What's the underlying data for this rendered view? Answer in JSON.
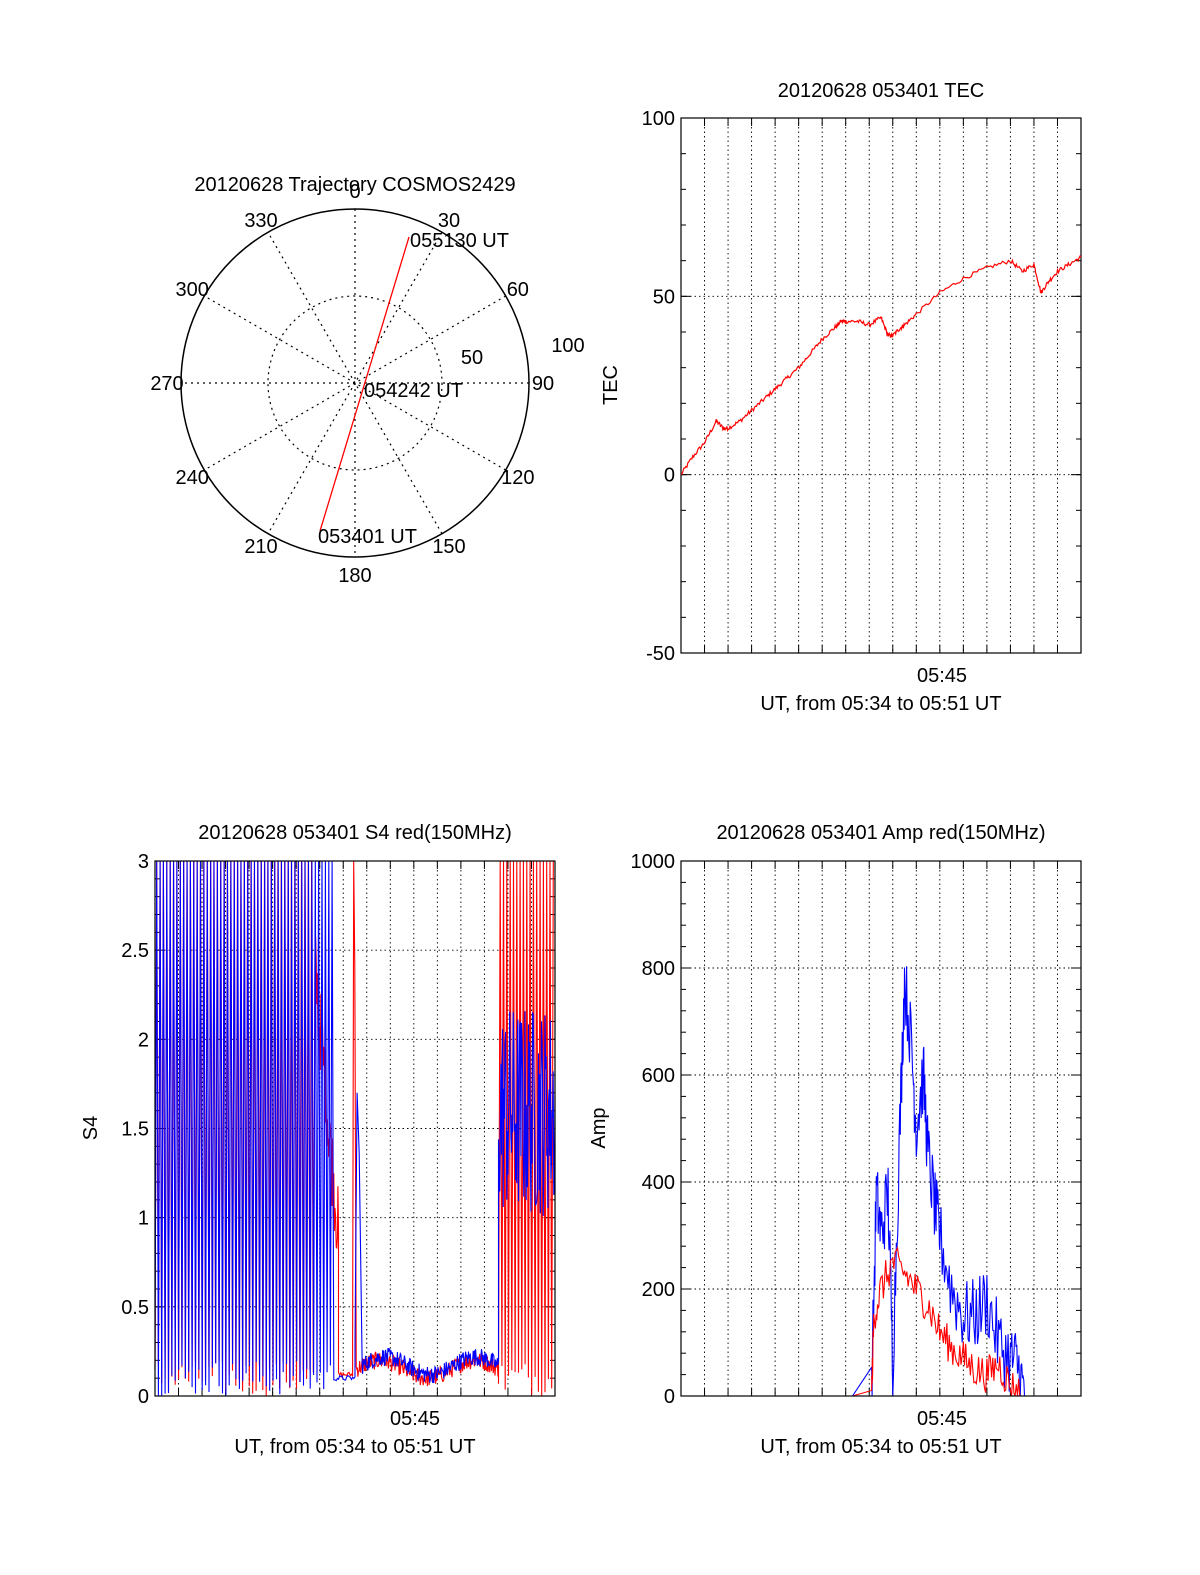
{
  "colors": {
    "red": "#ff0000",
    "blue": "#0000ff",
    "axis": "#000000",
    "grid": "#000000"
  },
  "chart_data": [
    {
      "type": "polar",
      "title": "20120628 Trajectory COSMOS2429",
      "angle_labels": [
        "0",
        "30",
        "60",
        "90",
        "120",
        "150",
        "180",
        "210",
        "240",
        "270",
        "300",
        "330"
      ],
      "radius_labels": [
        "50",
        "100"
      ],
      "grid": true,
      "series": [
        {
          "color": "red",
          "points": [
            {
              "azimuth": 200,
              "elevation_label": "053401 UT"
            },
            {
              "azimuth": 30,
              "center": true,
              "elevation_label": "054242 UT"
            },
            {
              "azimuth": 20,
              "elevation_label": "055130 UT"
            }
          ]
        }
      ],
      "annotations": [
        "053401 UT",
        "054242 UT",
        "055130 UT"
      ]
    },
    {
      "type": "line",
      "title": "20120628 053401 TEC",
      "xlabel": "UT, from 05:34 to 05:51 UT",
      "ylabel": "TEC",
      "x_tick_labels": [
        "05:45"
      ],
      "y_ticks": [
        "100",
        "50",
        "0",
        "-50"
      ],
      "ylim": [
        -50,
        100
      ],
      "xlim_minutes": [
        0,
        17
      ],
      "grid": true,
      "series": [
        {
          "color": "red",
          "x_minutes": [
            0,
            0.5,
            1,
            1.5,
            1.8,
            2.0,
            2.5,
            3.0,
            3.5,
            4.0,
            4.5,
            5.0,
            5.5,
            6.0,
            6.5,
            6.8,
            7.0,
            7.5,
            8.0,
            8.5,
            8.8,
            9.0,
            9.3,
            9.5,
            10.0,
            11.0,
            12.0,
            13.0,
            14.0,
            14.5,
            15.0,
            15.3,
            15.6,
            16.0,
            16.5,
            17.0
          ],
          "y": [
            0,
            5,
            9,
            15,
            13,
            13,
            15,
            18,
            21,
            24,
            27,
            30,
            34,
            38,
            41,
            43,
            43,
            43,
            42,
            44,
            39,
            39,
            41,
            42,
            45,
            51,
            55,
            58,
            60,
            57,
            59,
            51,
            54,
            57,
            59,
            61
          ]
        }
      ]
    },
    {
      "type": "line",
      "title": "20120628 053401 S4 red(150MHz)",
      "xlabel": "UT, from 05:34 to 05:51 UT",
      "ylabel": "S4",
      "x_tick_labels": [
        "05:45"
      ],
      "y_ticks": [
        "3",
        "2.5",
        "2",
        "1.5",
        "1",
        "0.5",
        "0"
      ],
      "ylim": [
        0,
        3
      ],
      "xlim_minutes": [
        0,
        17
      ],
      "grid": true,
      "series": [
        {
          "color": "red",
          "segments": [
            {
              "from": 0,
              "to": 6.8,
              "kind": "saturated-oscillation",
              "low": 0,
              "high": 3
            },
            {
              "from": 6.8,
              "to": 7.8,
              "kind": "decay",
              "start": 2.4,
              "end": 0.9
            },
            {
              "from": 7.8,
              "to": 8.4,
              "kind": "steady",
              "level": 0.12
            },
            {
              "from": 8.4,
              "to": 8.55,
              "kind": "spike",
              "level": 3
            },
            {
              "from": 8.55,
              "to": 14.6,
              "kind": "noisy-low",
              "level": 0.15
            },
            {
              "from": 14.6,
              "to": 17,
              "kind": "saturated-oscillation",
              "low": 0,
              "high": 3
            }
          ]
        },
        {
          "color": "blue",
          "segments": [
            {
              "from": 0,
              "to": 7.6,
              "kind": "saturated-oscillation",
              "low": 0,
              "high": 3
            },
            {
              "from": 7.6,
              "to": 8.5,
              "kind": "steady",
              "level": 0.1
            },
            {
              "from": 8.5,
              "to": 8.8,
              "kind": "spike",
              "level": 1.7
            },
            {
              "from": 8.8,
              "to": 14.6,
              "kind": "noisy-low",
              "level": 0.17
            },
            {
              "from": 14.6,
              "to": 17,
              "kind": "noisy-high",
              "level": 1.6
            }
          ]
        }
      ]
    },
    {
      "type": "line",
      "title": "20120628 053401 Amp red(150MHz)",
      "xlabel": "UT, from 05:34 to 05:51 UT",
      "ylabel": "Amp",
      "x_tick_labels": [
        "05:45"
      ],
      "y_ticks": [
        "1000",
        "800",
        "600",
        "400",
        "200",
        "0"
      ],
      "ylim": [
        0,
        1000
      ],
      "xlim_minutes": [
        0,
        17
      ],
      "grid": true,
      "series": [
        {
          "color": "red",
          "x_minutes": [
            0,
            8.1,
            8.2,
            8.5,
            9.0,
            9.5,
            10.0,
            10.5,
            11.0,
            11.5,
            12.0,
            12.5,
            13.0,
            13.5,
            14.0,
            14.5,
            17.0
          ],
          "y": [
            0,
            0,
            150,
            200,
            250,
            230,
            200,
            170,
            120,
            90,
            70,
            50,
            40,
            60,
            20,
            0,
            0
          ]
        },
        {
          "color": "blue",
          "x_minutes": [
            0,
            8.1,
            8.3,
            8.5,
            8.8,
            9.0,
            9.3,
            9.5,
            9.8,
            10.0,
            10.3,
            10.5,
            10.8,
            11.0,
            11.5,
            12.0,
            12.5,
            13.0,
            13.5,
            14.0,
            14.3,
            14.6,
            17.0
          ],
          "y": [
            0,
            0,
            380,
            300,
            380,
            60,
            500,
            780,
            650,
            500,
            600,
            450,
            350,
            300,
            200,
            150,
            150,
            180,
            100,
            70,
            60,
            0,
            0
          ]
        }
      ]
    }
  ]
}
